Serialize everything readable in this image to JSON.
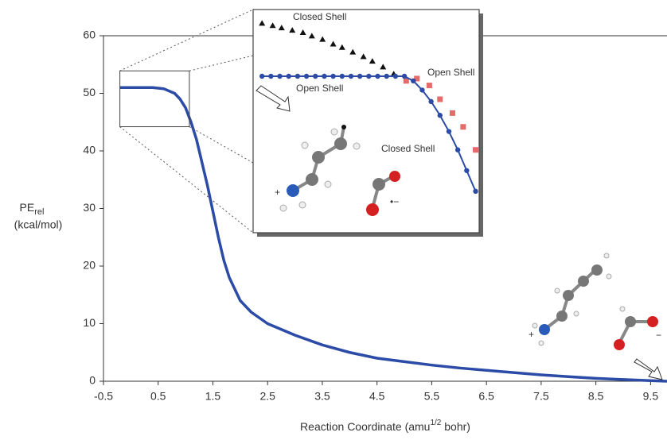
{
  "chart_data": [
    {
      "type": "line",
      "y_label": {
        "text": "PE",
        "sub": "rel"
      },
      "y_unit": "(kcal/mol)",
      "x_label": {
        "text": "Reaction Coordinate (amu",
        "sup": "1/2",
        "tail": " bohr)"
      },
      "x": [
        -0.2,
        0,
        0.2,
        0.4,
        0.6,
        0.8,
        0.9,
        1.0,
        1.1,
        1.2,
        1.3,
        1.4,
        1.5,
        1.6,
        1.7,
        1.8,
        2.0,
        2.2,
        2.5,
        3.0,
        3.5,
        4.0,
        4.5,
        5.0,
        5.5,
        6.0,
        6.5,
        7.0,
        7.5,
        8.0,
        8.5,
        9.0,
        9.5,
        9.8
      ],
      "values": [
        51,
        51,
        51,
        51,
        50.8,
        50,
        49,
        47.5,
        45,
        42,
        38,
        34,
        29.5,
        25,
        21,
        18,
        14,
        12,
        10,
        8,
        6.3,
        5,
        4,
        3.4,
        2.8,
        2.3,
        1.9,
        1.5,
        1.1,
        0.8,
        0.5,
        0.3,
        0.1,
        0
      ],
      "color": "#2b4ba6",
      "xlim": [
        -0.5,
        9.8
      ],
      "xticks": [
        -0.5,
        0.5,
        1.5,
        2.5,
        3.5,
        4.5,
        5.5,
        6.5,
        7.5,
        8.5,
        9.5
      ],
      "ylim": [
        0,
        60
      ],
      "yticks": [
        0,
        10,
        20,
        30,
        40,
        50,
        60
      ],
      "annotations": [
        {
          "text": "+",
          "color": "#2b4ba6"
        },
        {
          "text": "−",
          "color": "#d93030"
        }
      ]
    },
    {
      "type": "scatter",
      "xlim": [
        -0.2,
        1.07
      ],
      "ylim": [
        44.2,
        53.9
      ],
      "series": [
        {
          "color": "#111111",
          "marker": "triangle",
          "line": false,
          "x": [
            -0.15,
            -0.09,
            -0.04,
            0.02,
            0.08,
            0.13,
            0.19,
            0.25,
            0.3,
            0.36,
            0.42,
            0.47,
            0.53,
            0.59
          ],
          "values": [
            53.3,
            53.2,
            53.1,
            53.0,
            52.9,
            52.75,
            52.6,
            52.4,
            52.25,
            52.05,
            51.85,
            51.65,
            51.4,
            51.1
          ]
        },
        {
          "color": "#e05050",
          "marker": "square",
          "line": false,
          "x": [
            0.66,
            0.72,
            0.79,
            0.85,
            0.92,
            0.98,
            1.05
          ],
          "values": [
            50.8,
            50.9,
            50.6,
            50.0,
            49.4,
            48.8,
            47.8
          ]
        },
        {
          "color": "#2b4ba6",
          "marker": "circle",
          "line": true,
          "x": [
            -0.15,
            -0.1,
            -0.05,
            0,
            0.05,
            0.1,
            0.15,
            0.2,
            0.25,
            0.3,
            0.35,
            0.4,
            0.45,
            0.5,
            0.55,
            0.6,
            0.65,
            0.7,
            0.75,
            0.8,
            0.85,
            0.9,
            0.95,
            1.0,
            1.05
          ],
          "values": [
            51,
            51,
            51,
            51,
            51,
            51,
            51,
            51,
            51,
            51,
            51,
            51,
            51,
            51,
            51,
            51,
            51,
            50.8,
            50.4,
            49.9,
            49.3,
            48.6,
            47.8,
            46.9,
            46.0
          ]
        }
      ],
      "annotations": [
        {
          "text": "Closed Shell",
          "color": "#111111"
        },
        {
          "text": "Open Shell",
          "color": "#e05050"
        },
        {
          "text": "Open Shell",
          "color": "#2b4ba6"
        },
        {
          "text": "Closed Shell",
          "color": "#2b4ba6"
        },
        {
          "text": "+",
          "color": "#2b4ba6"
        },
        {
          "text": "•−",
          "color": "#d93030"
        }
      ]
    }
  ]
}
